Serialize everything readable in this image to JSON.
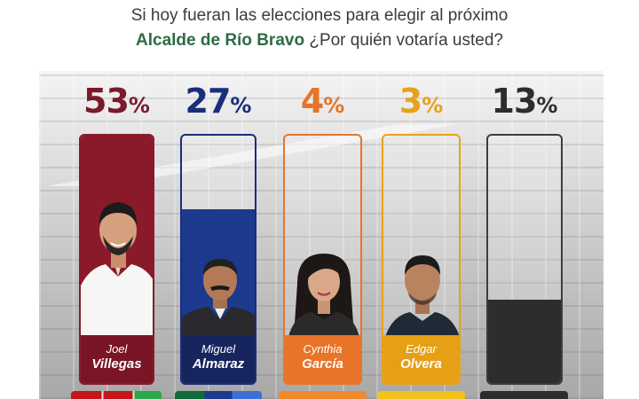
{
  "header": {
    "line1": "Si hoy fueran las elecciones para elegir al próximo",
    "line2_strong": "Alcalde de Río Bravo",
    "line2_rest": " ¿Por quién votaría usted?"
  },
  "colors": {
    "villegas": "#8a1a2a",
    "almaraz": "#1a2e7a",
    "garcia": "#e8742a",
    "olvera": "#e8a21a",
    "undecided": "#2d2d2d"
  },
  "chart_data": {
    "type": "bar",
    "categories": [
      "Joel Villegas",
      "Miguel Almaraz",
      "Cynthia García",
      "Edgar Olvera",
      ""
    ],
    "values": [
      53,
      27,
      4,
      3,
      13
    ],
    "ylim": [
      0,
      100
    ],
    "value_labels": [
      "53",
      "27",
      "4",
      "3",
      "13"
    ],
    "unit": "%"
  },
  "candidates": [
    {
      "first": "Joel",
      "last": "Villegas"
    },
    {
      "first": "Miguel",
      "last": "Almaraz"
    },
    {
      "first": "Cynthia",
      "last": "García"
    },
    {
      "first": "Edgar",
      "last": "Olvera"
    }
  ]
}
